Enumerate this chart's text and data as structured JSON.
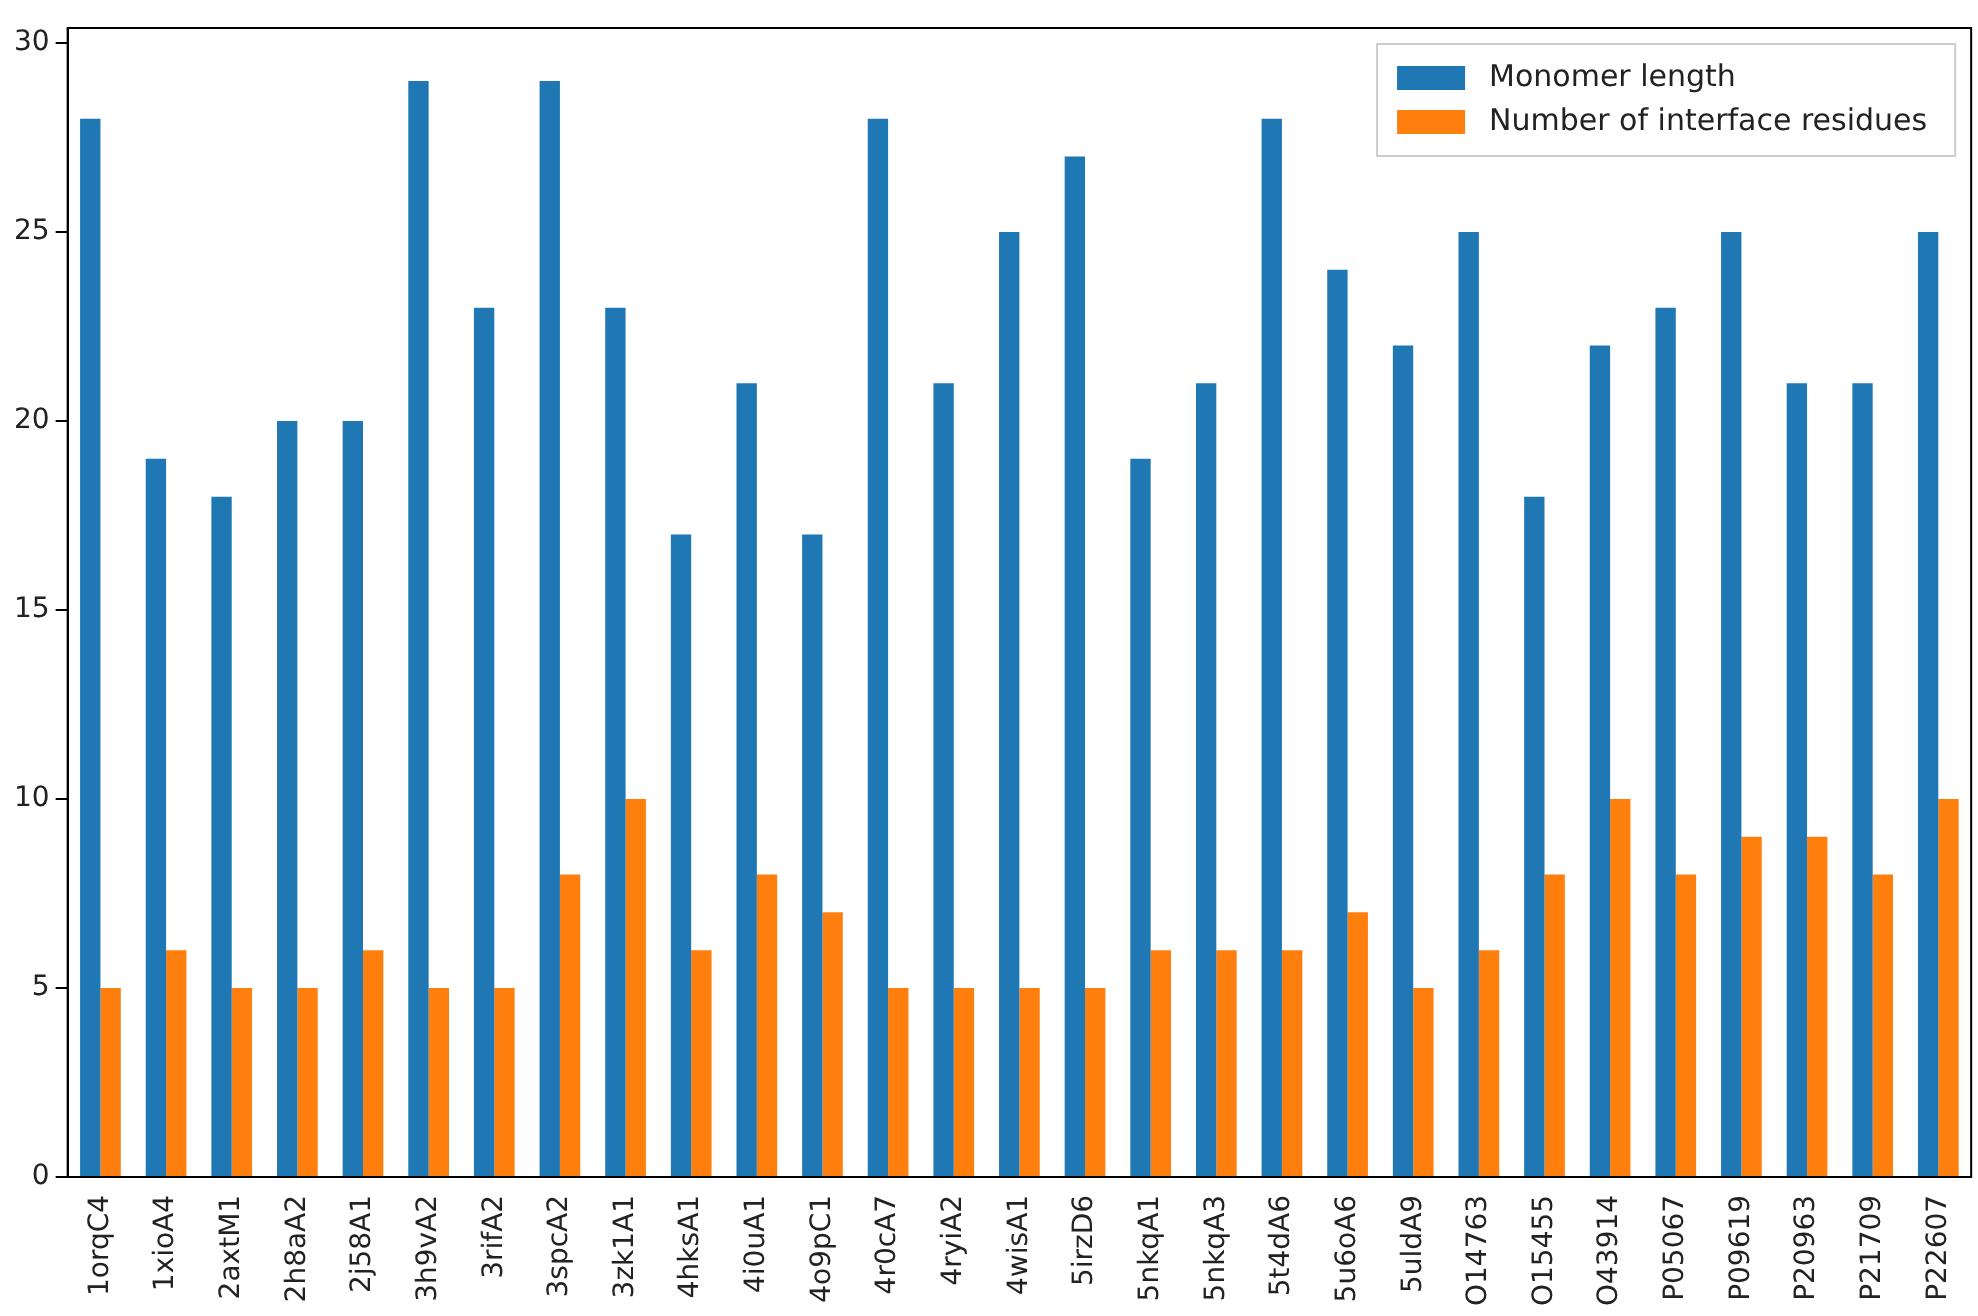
{
  "chart_data": {
    "type": "bar",
    "categories": [
      "1orqC4",
      "1xioA4",
      "2axtM1",
      "2h8aA2",
      "2j58A1",
      "3h9vA2",
      "3rifA2",
      "3spcA2",
      "3zk1A1",
      "4hksA1",
      "4i0uA1",
      "4o9pC1",
      "4r0cA7",
      "4ryiA2",
      "4wisA1",
      "5irzD6",
      "5nkqA1",
      "5nkqA3",
      "5t4dA6",
      "5u6oA6",
      "5uldA9",
      "O14763",
      "O15455",
      "O43914",
      "P05067",
      "P09619",
      "P20963",
      "P21709",
      "P22607"
    ],
    "series": [
      {
        "name": "Monomer length",
        "color": "#1f77b4",
        "values": [
          28,
          19,
          18,
          20,
          20,
          29,
          23,
          29,
          23,
          17,
          21,
          17,
          28,
          21,
          25,
          27,
          19,
          21,
          28,
          24,
          22,
          25,
          18,
          22,
          23,
          25,
          21,
          21,
          25
        ]
      },
      {
        "name": "Number of interface residues",
        "color": "#ff7f0e",
        "values": [
          5,
          6,
          5,
          5,
          6,
          5,
          5,
          8,
          10,
          6,
          8,
          7,
          5,
          5,
          5,
          5,
          6,
          6,
          6,
          7,
          5,
          6,
          8,
          10,
          8,
          9,
          9,
          8,
          10
        ]
      }
    ],
    "ylim": [
      0,
      30.4
    ],
    "yticks": [
      0,
      5,
      10,
      15,
      20,
      25,
      30
    ],
    "grid": false,
    "legend": "top right"
  }
}
